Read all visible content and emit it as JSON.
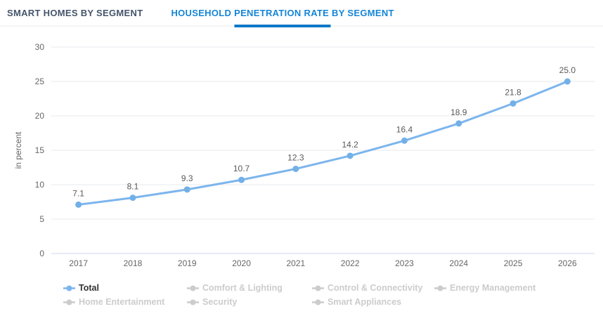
{
  "tabs": [
    {
      "label": "SMART HOMES BY SEGMENT",
      "active": false
    },
    {
      "label": "HOUSEHOLD PENETRATION RATE BY SEGMENT",
      "active": true
    }
  ],
  "chart_data": {
    "type": "line",
    "title": "HOUSEHOLD PENETRATION RATE BY SEGMENT",
    "categories": [
      "2017",
      "2018",
      "2019",
      "2020",
      "2021",
      "2022",
      "2023",
      "2024",
      "2025",
      "2026"
    ],
    "series": [
      {
        "name": "Total",
        "values": [
          7.1,
          8.1,
          9.3,
          10.7,
          12.3,
          14.2,
          16.4,
          18.9,
          21.8,
          25.0
        ],
        "visible": true
      }
    ],
    "xlabel": "",
    "ylabel": "in percent",
    "ylim": [
      0,
      30
    ],
    "ytick_step": 5,
    "yticks": [
      0,
      5,
      10,
      15,
      20,
      25,
      30
    ],
    "grid": true,
    "data_labels": true,
    "legend_position": "bottom",
    "legend": [
      {
        "label": "Total",
        "active": true
      },
      {
        "label": "Comfort & Lighting",
        "active": false
      },
      {
        "label": "Control & Connectivity",
        "active": false
      },
      {
        "label": "Energy Management",
        "active": false
      },
      {
        "label": "Home Entertainment",
        "active": false
      },
      {
        "label": "Security",
        "active": false
      },
      {
        "label": "Smart Appliances",
        "active": false
      }
    ]
  },
  "colors": {
    "series_blue": "#7cb5ec",
    "marker_blue": "#72b0e8",
    "accent_blue": "#1585d6",
    "underline_blue": "#0f78c8",
    "axis_line": "#ccd6eb",
    "gridline": "#e7e9ec",
    "tick_text": "#666666",
    "data_label_text": "#595959",
    "tab_inactive_text": "#44546a",
    "legend_active_text": "#333333",
    "legend_inactive": "#cccccc"
  }
}
